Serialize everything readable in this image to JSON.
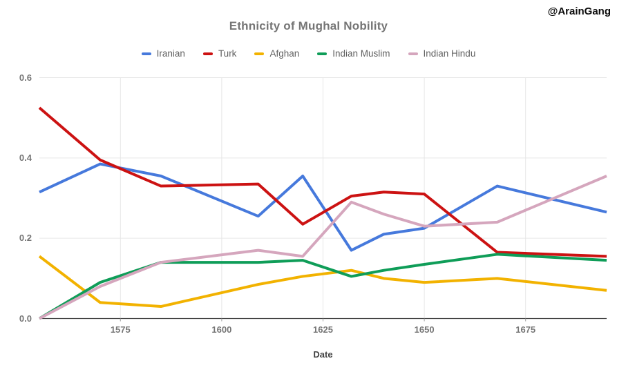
{
  "watermark": "@ArainGang",
  "colors": {
    "title_text": "#757575",
    "legend_text": "#616161",
    "axis_text": "#757575",
    "axis_title_text": "#424242",
    "gridline": "#e6e6e6",
    "baseline": "#3c3c3c",
    "tick": "#9e9e9e"
  },
  "chart_data": {
    "type": "line",
    "title": "Ethnicity of Mughal Nobility",
    "xlabel": "Date",
    "ylabel": "",
    "xlim": [
      1555,
      1695
    ],
    "ylim": [
      0,
      0.6
    ],
    "x_ticks": [
      1575,
      1600,
      1625,
      1650,
      1675
    ],
    "y_ticks": [
      0.0,
      0.2,
      0.4,
      0.6
    ],
    "grid": true,
    "legend_position": "top",
    "x": [
      1555,
      1570,
      1585,
      1609,
      1620,
      1632,
      1640,
      1650,
      1668,
      1695
    ],
    "series": [
      {
        "name": "Iranian",
        "color": "#4679DC",
        "values": [
          0.315,
          0.385,
          0.355,
          0.255,
          0.355,
          0.17,
          0.21,
          0.225,
          0.33,
          0.265
        ]
      },
      {
        "name": "Turk",
        "color": "#CC1212",
        "values": [
          0.525,
          0.395,
          0.33,
          0.335,
          0.235,
          0.305,
          0.315,
          0.31,
          0.165,
          0.155
        ]
      },
      {
        "name": "Afghan",
        "color": "#F2B200",
        "values": [
          0.155,
          0.04,
          0.03,
          0.085,
          0.105,
          0.12,
          0.1,
          0.09,
          0.1,
          0.07
        ]
      },
      {
        "name": "Indian Muslim",
        "color": "#0F9D58",
        "values": [
          0.0,
          0.09,
          0.14,
          0.14,
          0.145,
          0.105,
          0.12,
          0.135,
          0.16,
          0.145
        ]
      },
      {
        "name": "Indian Hindu",
        "color": "#D5A6BD",
        "values": [
          0.0,
          0.08,
          0.14,
          0.17,
          0.155,
          0.29,
          0.26,
          0.23,
          0.24,
          0.355
        ]
      }
    ]
  }
}
